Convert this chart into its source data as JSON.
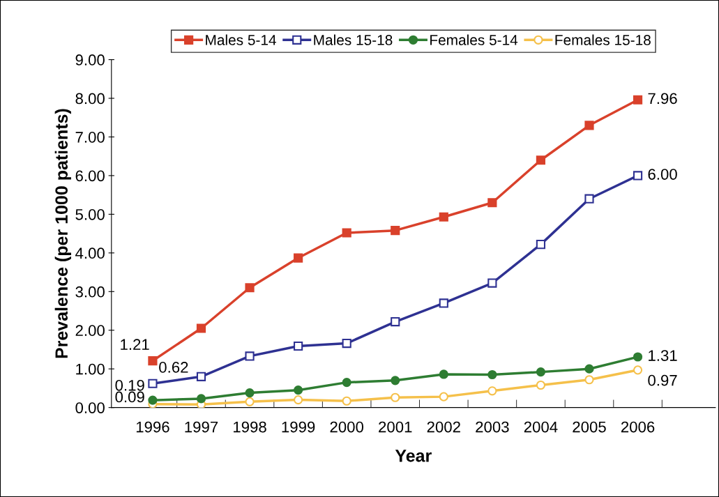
{
  "chart_data": {
    "type": "line",
    "xlabel": "Year",
    "ylabel": "Prevalence (per 1000 patients)",
    "categories": [
      "1996",
      "1997",
      "1998",
      "1999",
      "2000",
      "2001",
      "2002",
      "2003",
      "2004",
      "2005",
      "2006",
      null
    ],
    "ylim": [
      0,
      9
    ],
    "yticks": [
      {
        "value": 0,
        "label": "0.00"
      },
      {
        "value": 1,
        "label": "1.00"
      },
      {
        "value": 2,
        "label": "2.00"
      },
      {
        "value": 3,
        "label": "3.00"
      },
      {
        "value": 4,
        "label": "4.00"
      },
      {
        "value": 5,
        "label": "5.00"
      },
      {
        "value": 6,
        "label": "6.00"
      },
      {
        "value": 7,
        "label": "7.00"
      },
      {
        "value": 8,
        "label": "8.00"
      },
      {
        "value": 9,
        "label": "9.00"
      }
    ],
    "grid": false,
    "legend": "top",
    "line_style": "solid",
    "series": [
      {
        "name": "Males 5-14",
        "color": "#d9412b",
        "marker": "square",
        "values": [
          1.21,
          2.05,
          3.1,
          3.87,
          4.52,
          4.58,
          4.93,
          5.3,
          6.4,
          7.3,
          7.96,
          null
        ],
        "value_labels": [
          "1.21",
          null,
          null,
          null,
          null,
          null,
          null,
          null,
          null,
          null,
          "7.96",
          null
        ]
      },
      {
        "name": "Males 15-18",
        "color": "#2e3192",
        "marker": "square",
        "values": [
          0.62,
          0.8,
          1.33,
          1.59,
          1.66,
          2.22,
          2.7,
          3.22,
          4.22,
          5.4,
          6.0,
          null
        ],
        "value_labels": [
          "0.62",
          null,
          null,
          null,
          null,
          null,
          null,
          null,
          null,
          null,
          "6.00",
          null
        ]
      },
      {
        "name": "Females 5-14",
        "color": "#2e7d32",
        "marker": "circle",
        "values": [
          0.19,
          0.23,
          0.38,
          0.45,
          0.65,
          0.7,
          0.86,
          0.85,
          0.92,
          1.0,
          1.31,
          null
        ],
        "value_labels": [
          "0.19",
          null,
          null,
          null,
          null,
          null,
          null,
          null,
          null,
          null,
          "1.31",
          null
        ]
      },
      {
        "name": "Females 15-18",
        "color": "#f5c04a",
        "marker": "circle",
        "values": [
          0.09,
          0.08,
          0.15,
          0.2,
          0.17,
          0.26,
          0.28,
          0.43,
          0.58,
          0.72,
          0.97,
          null
        ],
        "value_labels": [
          "0.09",
          null,
          null,
          null,
          null,
          null,
          null,
          null,
          null,
          null,
          "0.97",
          null
        ]
      }
    ]
  }
}
